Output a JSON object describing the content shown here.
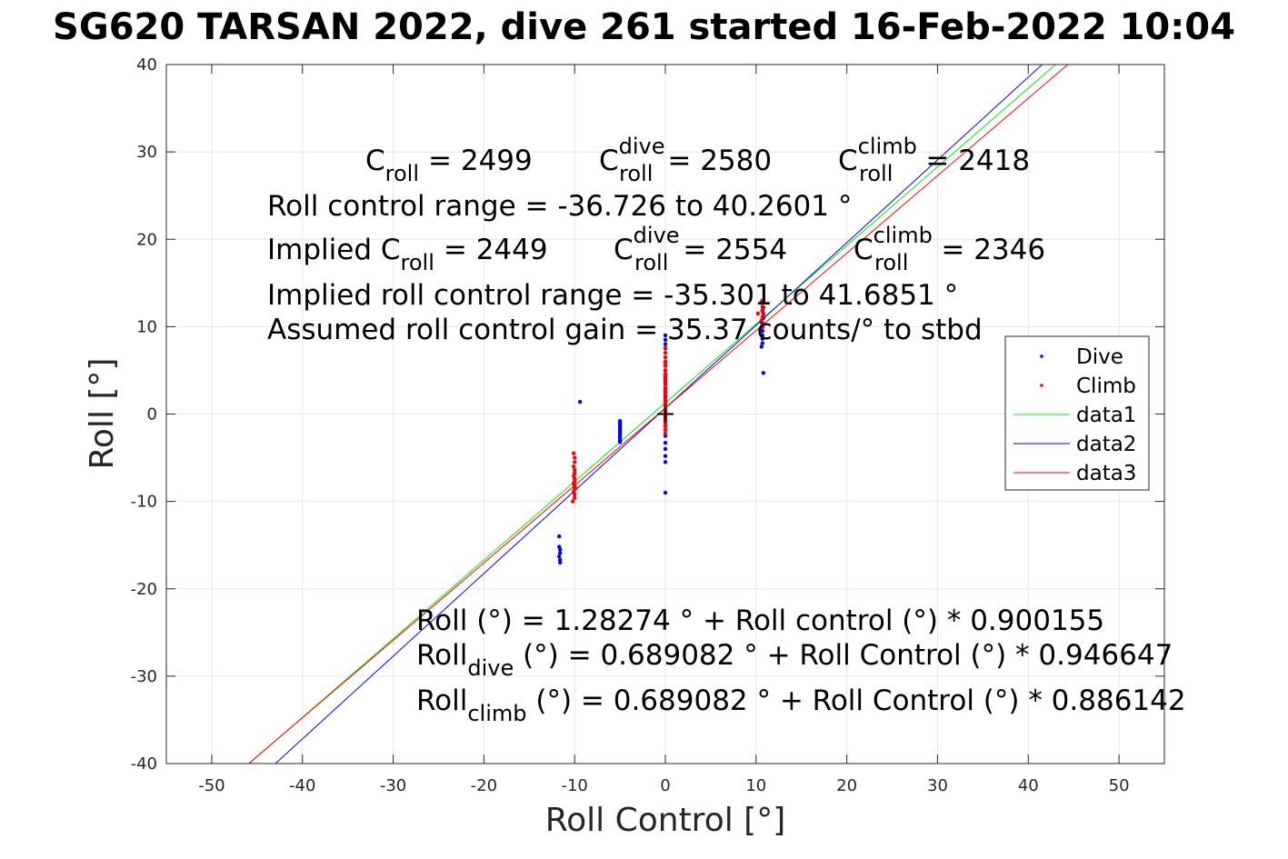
{
  "figure": {
    "title": "SG620 TARSAN 2022, dive 261 started 16-Feb-2022 10:04"
  },
  "colors": {
    "dive": "#0000ff",
    "climb": "#ff0000",
    "data1": "#00ee00",
    "data2": "#0000ff",
    "data3": "#ff0000",
    "grid": "#e6e6e6",
    "axis": "#262626"
  },
  "annotations": {
    "c_roll": {
      "base": "C",
      "sub": "roll",
      "value": "= 2499"
    },
    "c_roll_dive": {
      "base": "C",
      "sup": "dive",
      "sub": "roll",
      "value": "= 2580"
    },
    "c_roll_climb": {
      "base": "C",
      "sup": "climb",
      "sub": "roll",
      "value": "= 2418"
    },
    "roll_control_range": "Roll control range = -36.726 to 40.2601 °",
    "implied_c_roll": {
      "prefix": "Implied C",
      "sub": "roll",
      "value": "= 2449"
    },
    "implied_c_roll_dive": {
      "base": "C",
      "sup": "dive",
      "sub": "roll",
      "value": "= 2554"
    },
    "implied_c_roll_climb": {
      "base": "C",
      "sup": "climb",
      "sub": "roll",
      "value": "= 2346"
    },
    "implied_range": "Implied roll control range = -35.301 to 41.6851 °",
    "gain": "Assumed roll control gain = 35.37 counts/° to stbd",
    "fit_all": "Roll (°) = 1.28274 ° + Roll control (°) * 0.900155",
    "fit_dive": {
      "base": "Roll",
      "sub": "dive",
      "rest": " (°) = 0.689082 ° + Roll Control (°) * 0.946647"
    },
    "fit_climb": {
      "base": "Roll",
      "sub": "climb",
      "rest": " (°) = 0.689082 ° + Roll Control (°) * 0.886142"
    }
  },
  "chart_data": {
    "type": "scatter",
    "xlabel": "Roll Control [°]",
    "ylabel": "Roll [°]",
    "xlim": [
      -55,
      55
    ],
    "ylim": [
      -40,
      40
    ],
    "xticks": [
      -50,
      -40,
      -30,
      -20,
      -10,
      0,
      10,
      20,
      30,
      40,
      50
    ],
    "yticks": [
      -40,
      -30,
      -20,
      -10,
      0,
      10,
      20,
      30,
      40
    ],
    "grid": true,
    "legend_position": "right",
    "legend": [
      "Dive",
      "Climb",
      "data1",
      "data2",
      "data3"
    ],
    "series": [
      {
        "name": "Dive",
        "kind": "points",
        "x": [
          -11.7,
          -11.6,
          -11.6,
          -11.7,
          -11.6,
          -11.6,
          -11.7,
          -9.4,
          -5,
          -5,
          -5,
          -5,
          -5,
          -5,
          -5,
          -5,
          -5,
          -5,
          -5,
          -5,
          -5,
          -5,
          -5,
          0,
          0,
          0,
          0,
          0,
          0,
          0,
          0,
          0,
          0,
          0,
          0,
          0,
          0,
          0,
          0,
          0,
          0,
          0,
          0,
          0,
          0,
          0,
          0,
          0,
          0,
          0,
          0,
          10.6,
          10.7,
          10.7,
          10.7,
          10.7,
          10.7,
          10.6,
          10.8,
          10.8,
          10.7,
          10.8,
          10.8
        ],
        "y": [
          -14,
          -15.5,
          -15.9,
          -16.3,
          -16.7,
          -17,
          -15.2,
          1.4,
          -0.8,
          -1.0,
          -1.2,
          -1.4,
          -1.6,
          -1.8,
          -2.0,
          -2.2,
          -2.4,
          -2.6,
          -2.8,
          -3.0,
          -3.2,
          -0.9,
          -1.9,
          9,
          8.5,
          8,
          7.5,
          6,
          5,
          4.5,
          4,
          3.5,
          3,
          2.5,
          2,
          1.5,
          1,
          0.5,
          0.2,
          -0.3,
          -0.8,
          -1.3,
          -1.8,
          -2.5,
          -3.3,
          -4,
          -4.8,
          -5.5,
          -9,
          0,
          -0.5,
          10.5,
          10.1,
          9.5,
          9.0,
          8.6,
          8.1,
          7.7,
          4.7,
          12.2,
          11.8,
          11.4,
          11.0
        ]
      },
      {
        "name": "Climb",
        "kind": "points",
        "x": [
          -10.1,
          -10.0,
          -10.0,
          -10.1,
          -10.0,
          -10.0,
          -10.1,
          -10.0,
          -10.0,
          -10.1,
          -10.0,
          -10.0,
          -10.1,
          -10.0,
          -10.0,
          -10.2,
          -10.1,
          -9.9,
          0,
          0,
          0,
          0,
          0,
          0,
          0,
          0,
          0,
          0,
          0,
          0,
          0,
          0,
          0,
          0,
          0,
          0,
          0,
          0,
          0,
          0,
          0,
          0,
          0,
          0,
          0,
          0,
          0,
          0,
          10.6,
          10.7,
          10.7,
          10.8,
          10.7,
          10.6,
          10.8,
          10.7,
          10.2,
          10.7
        ],
        "y": [
          -4.5,
          -5,
          -5.5,
          -6,
          -6.4,
          -6.8,
          -7.1,
          -7.4,
          -7.7,
          -8,
          -8.3,
          -8.6,
          -8.9,
          -9.2,
          -9.6,
          -10,
          -7.9,
          -8.5,
          7.6,
          7,
          6.5,
          6,
          5.5,
          5,
          4.6,
          4.2,
          3.8,
          3.4,
          3.0,
          2.6,
          2.2,
          1.8,
          1.4,
          1.0,
          0.6,
          0.2,
          -0.2,
          -0.6,
          -1.0,
          -1.4,
          -1.8,
          -2.2,
          2.8,
          1.2,
          0.0,
          -0.8,
          4.4,
          5.8,
          12.8,
          12.3,
          11.9,
          11.5,
          11.1,
          10.7,
          10.3,
          9.9,
          11.5,
          13
        ]
      },
      {
        "name": "data1",
        "kind": "line",
        "x": [
          -55,
          55
        ],
        "y": [
          -48.22,
          50.79
        ]
      },
      {
        "name": "data2",
        "kind": "line",
        "x": [
          -55,
          55
        ],
        "y": [
          -51.38,
          52.75
        ]
      },
      {
        "name": "data3",
        "kind": "line",
        "x": [
          -55,
          55
        ],
        "y": [
          -48.05,
          49.43
        ]
      }
    ]
  }
}
